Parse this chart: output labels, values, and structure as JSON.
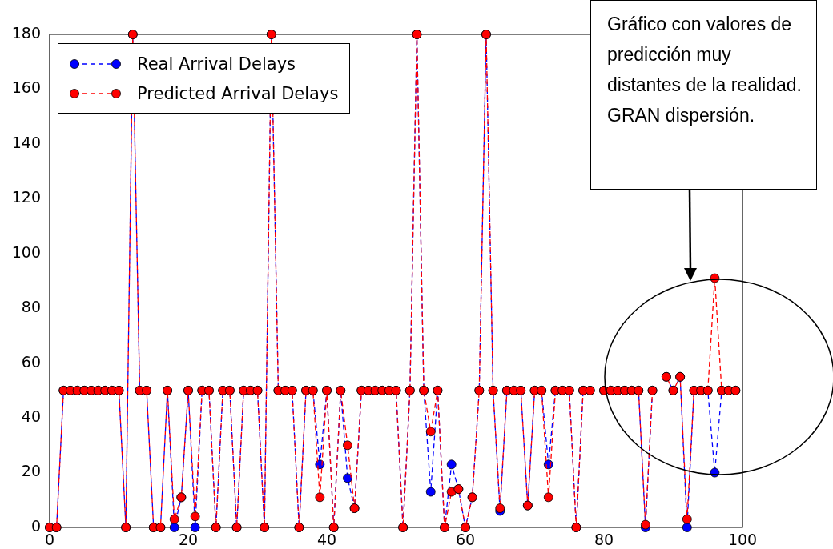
{
  "chart_data": {
    "type": "line",
    "x": [
      0,
      1,
      2,
      3,
      4,
      5,
      6,
      7,
      8,
      9,
      10,
      11,
      12,
      13,
      14,
      15,
      16,
      17,
      18,
      19,
      20,
      21,
      22,
      23,
      24,
      25,
      26,
      27,
      28,
      29,
      30,
      31,
      32,
      33,
      34,
      35,
      36,
      37,
      38,
      39,
      40,
      41,
      42,
      43,
      44,
      45,
      46,
      47,
      48,
      49,
      50,
      51,
      52,
      53,
      54,
      55,
      56,
      57,
      58,
      59,
      60,
      61,
      62,
      63,
      64,
      65,
      66,
      67,
      68,
      69,
      70,
      71,
      72,
      73,
      74,
      75,
      76,
      77,
      78,
      79,
      80,
      81,
      82,
      83,
      84,
      85,
      86,
      87,
      88,
      89,
      90,
      91,
      92,
      93,
      94,
      95,
      96,
      97,
      98,
      99
    ],
    "series": [
      {
        "name": "Real Arrival Delays",
        "color": "#0000ff",
        "values": [
          0,
          0,
          50,
          50,
          50,
          50,
          50,
          50,
          50,
          50,
          50,
          0,
          180,
          50,
          50,
          0,
          0,
          50,
          0,
          11,
          50,
          0,
          50,
          50,
          0,
          50,
          50,
          0,
          50,
          50,
          50,
          0,
          180,
          50,
          50,
          50,
          0,
          50,
          50,
          23,
          50,
          0,
          50,
          18,
          7,
          50,
          50,
          50,
          50,
          50,
          50,
          0,
          50,
          180,
          50,
          13,
          50,
          0,
          23,
          14,
          0,
          11,
          50,
          180,
          50,
          6,
          50,
          50,
          50,
          8,
          50,
          50,
          23,
          50,
          50,
          50,
          0,
          50,
          50,
          null,
          50,
          50,
          50,
          50,
          50,
          50,
          0,
          50,
          null,
          55,
          50,
          55,
          0,
          50,
          50,
          50,
          20,
          50,
          50,
          50
        ]
      },
      {
        "name": "Predicted Arrival Delays",
        "color": "#ff0000",
        "values": [
          0,
          0,
          50,
          50,
          50,
          50,
          50,
          50,
          50,
          50,
          50,
          0,
          180,
          50,
          50,
          0,
          0,
          50,
          3,
          11,
          50,
          4,
          50,
          50,
          0,
          50,
          50,
          0,
          50,
          50,
          50,
          0,
          180,
          50,
          50,
          50,
          0,
          50,
          50,
          11,
          50,
          0,
          50,
          30,
          7,
          50,
          50,
          50,
          50,
          50,
          50,
          0,
          50,
          180,
          50,
          35,
          50,
          0,
          13,
          14,
          0,
          11,
          50,
          180,
          50,
          7,
          50,
          50,
          50,
          8,
          50,
          50,
          11,
          50,
          50,
          50,
          0,
          50,
          50,
          null,
          50,
          50,
          50,
          50,
          50,
          50,
          1,
          50,
          null,
          55,
          50,
          55,
          3,
          50,
          50,
          50,
          91,
          50,
          50,
          50
        ]
      }
    ],
    "xlim": [
      0,
      100
    ],
    "xticks": [
      0,
      20,
      40,
      60,
      80,
      100
    ],
    "ylim": [
      0,
      180
    ],
    "yticks": [
      0,
      20,
      40,
      60,
      80,
      100,
      120,
      140,
      160,
      180
    ],
    "legend": "top left",
    "marker": "circle",
    "line_style": "dashed",
    "annotations": [
      "Gráfico con valores de predicción muy distantes de la realidad. GRAN dispersión."
    ]
  }
}
